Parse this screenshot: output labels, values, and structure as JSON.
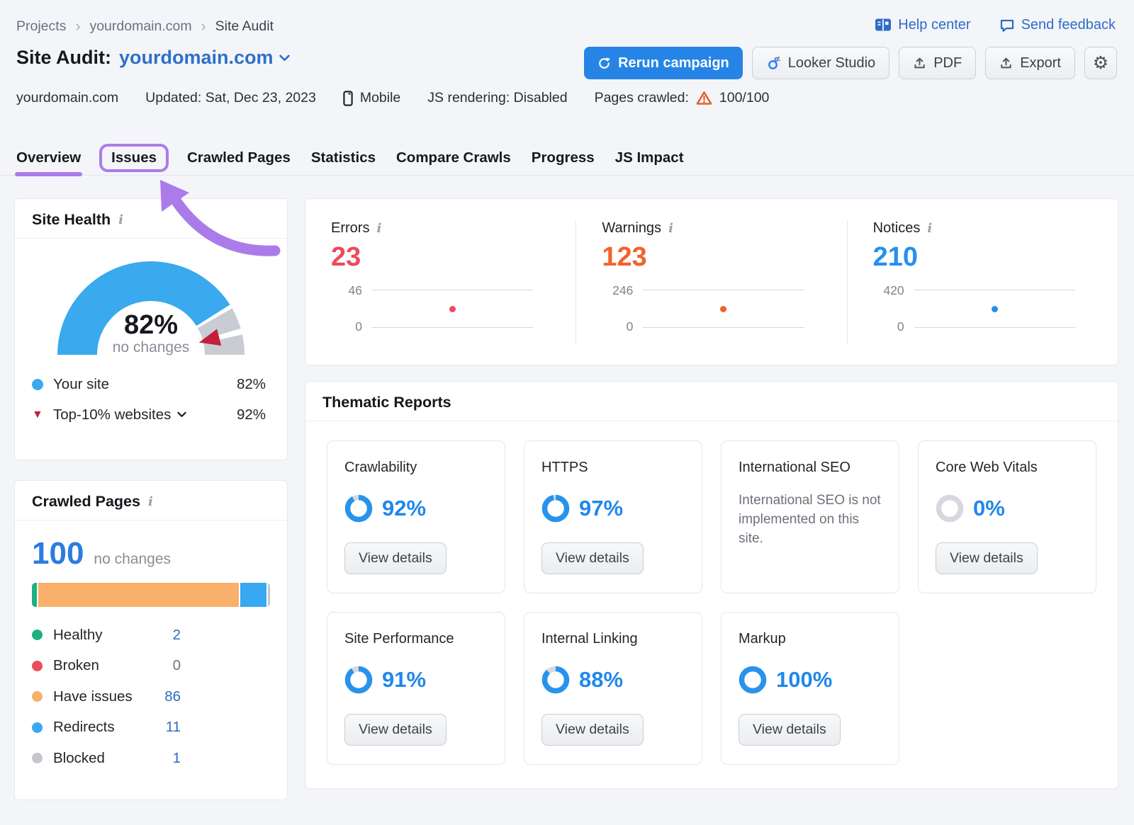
{
  "page": {
    "annotation_color": "#ab7ce9",
    "accent_blue": "#2584e6",
    "link_blue": "#2e6cc7",
    "domain_blue": "#2e70c8"
  },
  "breadcrumb": {
    "items": [
      "Projects",
      "yourdomain.com",
      "Site Audit"
    ]
  },
  "header": {
    "help_center": "Help center",
    "send_feedback": "Send feedback",
    "title_prefix": "Site Audit:",
    "title_domain": "yourdomain.com",
    "rerun_button": "Rerun campaign",
    "looker_button": "Looker Studio",
    "pdf_button": "PDF",
    "export_button": "Export",
    "meta_domain": "yourdomain.com",
    "meta_updated": "Updated: Sat, Dec 23, 2023",
    "meta_device": "Mobile",
    "meta_js": "JS rendering: Disabled",
    "meta_pages_label": "Pages crawled:",
    "meta_pages_value": "100/100"
  },
  "tabs": [
    {
      "label": "Overview"
    },
    {
      "label": "Issues"
    },
    {
      "label": "Crawled Pages"
    },
    {
      "label": "Statistics"
    },
    {
      "label": "Compare Crawls"
    },
    {
      "label": "Progress"
    },
    {
      "label": "JS Impact"
    }
  ],
  "site_health": {
    "title": "Site Health",
    "score": 82,
    "score_label": "82%",
    "change_label": "no changes",
    "your_site_label": "Your site",
    "your_site_value": "82%",
    "benchmark_label": "Top-10% websites",
    "benchmark_value": "92%",
    "benchmark_score": 92,
    "gauge_color": "#3aa9ee",
    "gauge_rest_color": "#c9ccd2",
    "marker_color": "#c41f3a"
  },
  "stats": {
    "items": [
      {
        "label": "Errors",
        "value": 23,
        "value_label": "23",
        "max": 46,
        "max_label": "46",
        "min_label": "0",
        "color": "#ed4b59"
      },
      {
        "label": "Warnings",
        "value": 123,
        "value_label": "123",
        "max": 246,
        "max_label": "246",
        "min_label": "0",
        "color": "#f2622b"
      },
      {
        "label": "Notices",
        "value": 210,
        "value_label": "210",
        "max": 420,
        "max_label": "420",
        "min_label": "0",
        "color": "#2590ee"
      }
    ]
  },
  "crawled_pages": {
    "title": "Crawled Pages",
    "total": "100",
    "change_label": "no changes",
    "segments": [
      {
        "label": "Healthy",
        "value": "2",
        "num": 2,
        "color": "#1db182"
      },
      {
        "label": "Broken",
        "value": "0",
        "num": 0,
        "color": "#ea4d5c"
      },
      {
        "label": "Have issues",
        "value": "86",
        "num": 86,
        "color": "#f8b06a"
      },
      {
        "label": "Redirects",
        "value": "11",
        "num": 11,
        "color": "#38a8f0"
      },
      {
        "label": "Blocked",
        "value": "1",
        "num": 1,
        "color": "#c3c6cc"
      }
    ]
  },
  "thematic": {
    "title": "Thematic Reports",
    "view_details": "View details",
    "cards": [
      {
        "label": "Crawlability",
        "percent": 92,
        "percent_label": "92%"
      },
      {
        "label": "HTTPS",
        "percent": 97,
        "percent_label": "97%"
      },
      {
        "label": "International SEO",
        "note": "International SEO is not implemented on this site."
      },
      {
        "label": "Core Web Vitals",
        "percent": 0,
        "percent_label": "0%"
      },
      {
        "label": "Site Performance",
        "percent": 91,
        "percent_label": "91%"
      },
      {
        "label": "Internal Linking",
        "percent": 88,
        "percent_label": "88%"
      },
      {
        "label": "Markup",
        "percent": 100,
        "percent_label": "100%"
      }
    ]
  }
}
